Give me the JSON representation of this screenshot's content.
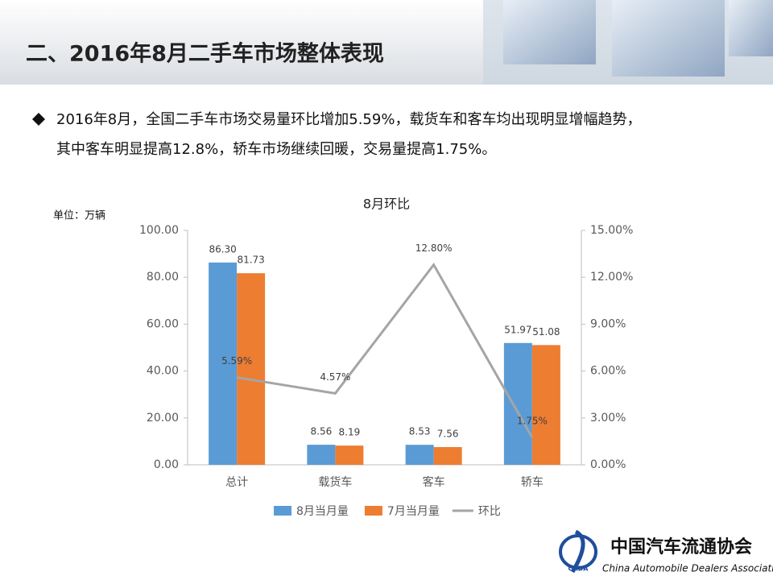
{
  "header": {
    "title": "二、2016年8月二手车市场整体表现"
  },
  "bullet": {
    "lines": [
      "2016年8月，全国二手车市场交易量环比增加5.59%，载货车和客车均出现明显增幅趋势，",
      "其中客车明显提高12.8%，轿车市场继续回暖，交易量提高1.75%。"
    ]
  },
  "logo": {
    "name_cn": "中国汽车流通协会",
    "name_en": "China Automobile Dealers Association",
    "abbr": "CADA"
  },
  "chart_data": {
    "type": "bar",
    "title": "8月环比",
    "unit_label": "单位：万辆",
    "categories": [
      "总计",
      "载货车",
      "客车",
      "轿车"
    ],
    "series": [
      {
        "name": "8月当月量",
        "type": "bar",
        "color": "#5b9bd5",
        "values": [
          86.3,
          8.56,
          8.53,
          51.97
        ],
        "value_labels": [
          "86.30",
          "8.56",
          "8.53",
          "51.97"
        ]
      },
      {
        "name": "7月当月量",
        "type": "bar",
        "color": "#ed7d31",
        "values": [
          81.73,
          8.19,
          7.56,
          51.08
        ],
        "value_labels": [
          "81.73",
          "8.19",
          "7.56",
          "51.08"
        ]
      },
      {
        "name": "环比",
        "type": "line",
        "axis": "y2",
        "color": "#a5a5a5",
        "values": [
          5.59,
          4.57,
          12.8,
          1.75
        ],
        "value_labels": [
          "5.59%",
          "4.57%",
          "12.80%",
          "1.75%"
        ]
      }
    ],
    "ylim": [
      0,
      100
    ],
    "yticks": [
      {
        "value": 0,
        "label": "0.00"
      },
      {
        "value": 20,
        "label": "20.00"
      },
      {
        "value": 40,
        "label": "40.00"
      },
      {
        "value": 60,
        "label": "60.00"
      },
      {
        "value": 80,
        "label": "80.00"
      },
      {
        "value": 100,
        "label": "100.00"
      }
    ],
    "y2lim": [
      0,
      15
    ],
    "y2ticks": [
      {
        "value": 0,
        "label": "0.00%"
      },
      {
        "value": 3,
        "label": "3.00%"
      },
      {
        "value": 6,
        "label": "6.00%"
      },
      {
        "value": 9,
        "label": "9.00%"
      },
      {
        "value": 12,
        "label": "12.00%"
      },
      {
        "value": 15,
        "label": "15.00%"
      }
    ],
    "grid": false,
    "legend": "bottom"
  }
}
